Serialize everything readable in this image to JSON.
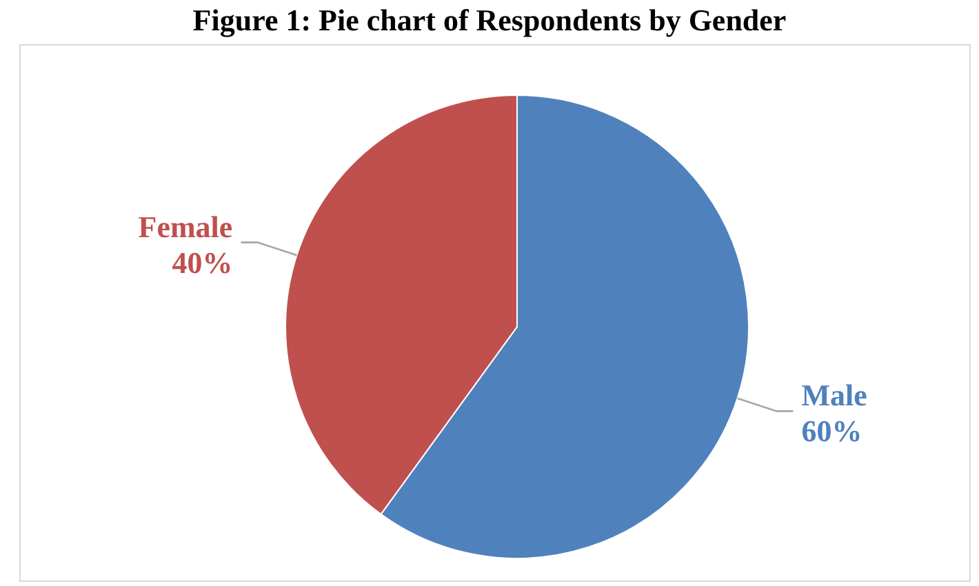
{
  "chart_data": {
    "type": "pie",
    "title": "Figure 1: Pie chart of Respondents by Gender",
    "categories": [
      "Male",
      "Female"
    ],
    "values": [
      60,
      40
    ],
    "value_labels": [
      "60%",
      "40%"
    ],
    "colors": [
      "#4f81bd",
      "#c0504d"
    ]
  }
}
